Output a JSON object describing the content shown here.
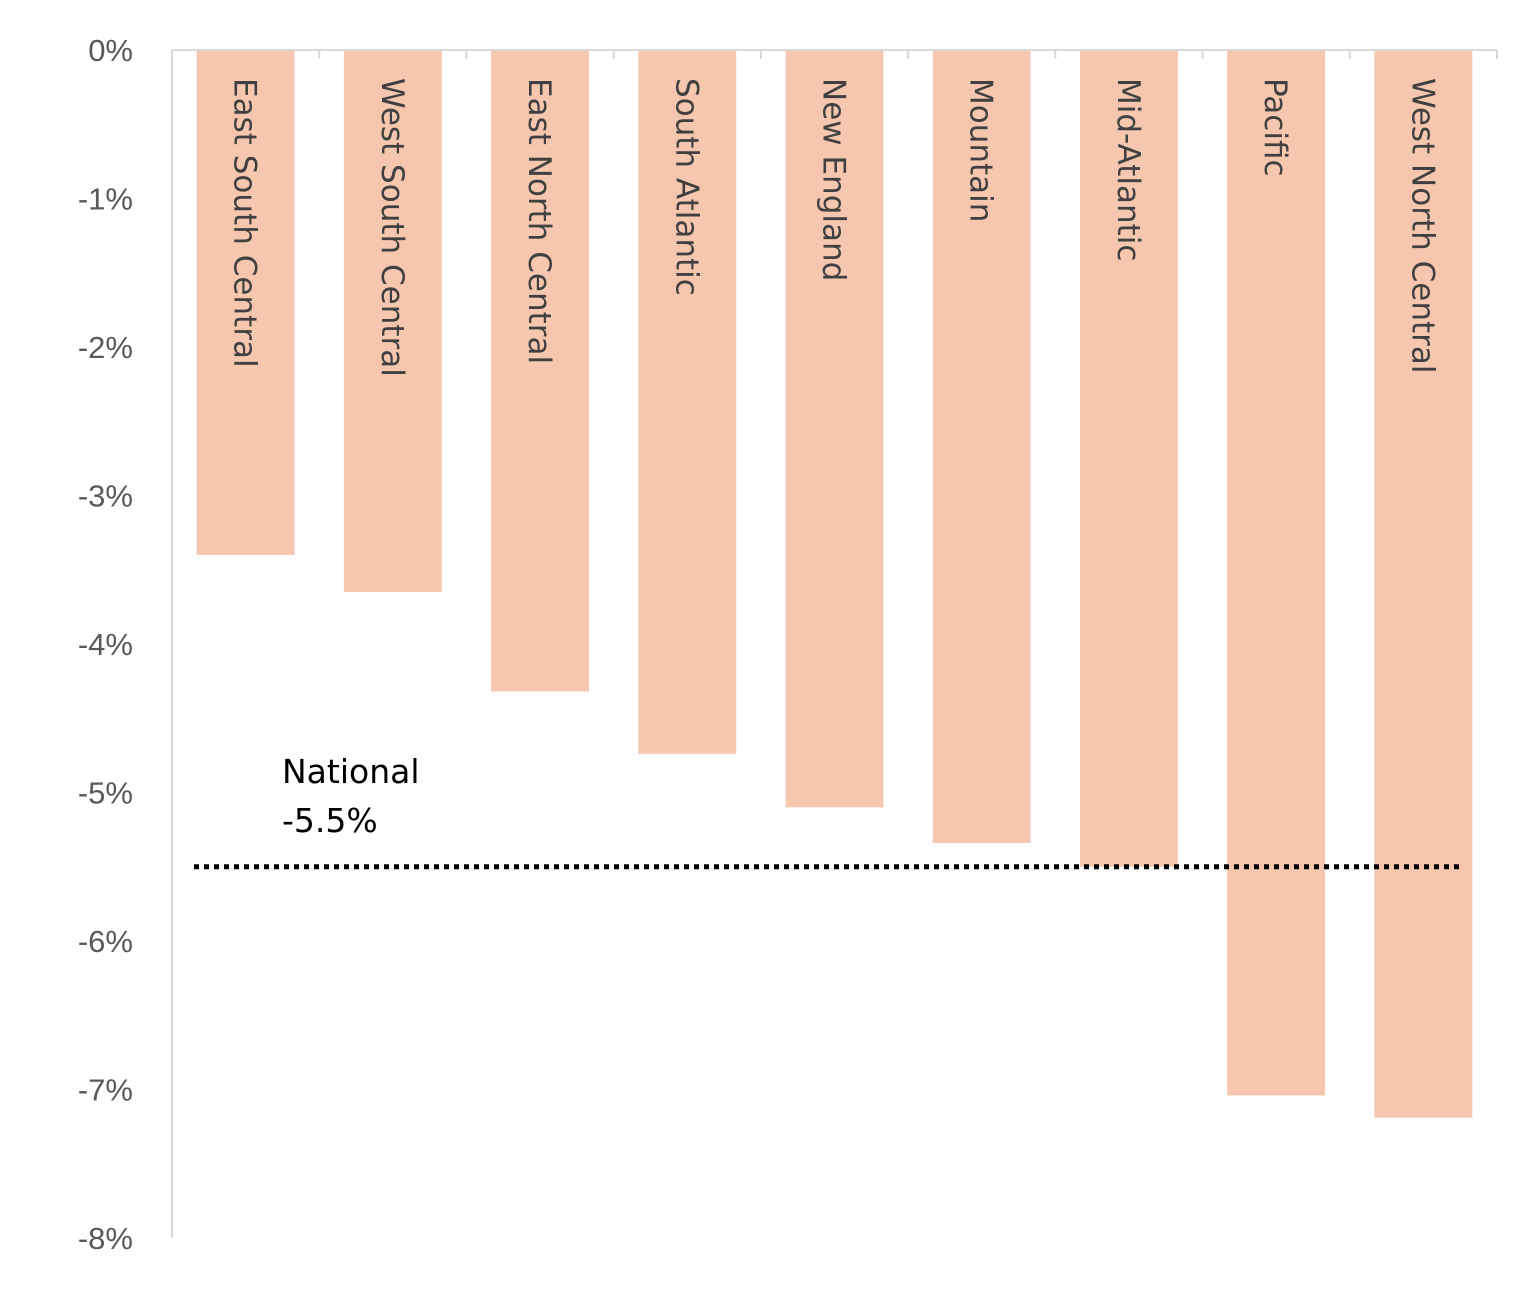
{
  "chart_data": {
    "type": "bar",
    "title": "",
    "xlabel": "",
    "ylabel": "",
    "ylim": [
      -8,
      0
    ],
    "y_ticks": [
      {
        "value": 0,
        "label": "0%"
      },
      {
        "value": -1,
        "label": "-1%"
      },
      {
        "value": -2,
        "label": "-2%"
      },
      {
        "value": -3,
        "label": "-3%"
      },
      {
        "value": -4,
        "label": "-4%"
      },
      {
        "value": -5,
        "label": "-5%"
      },
      {
        "value": -6,
        "label": "-6%"
      },
      {
        "value": -7,
        "label": "-7%"
      },
      {
        "value": -8,
        "label": "-8%"
      }
    ],
    "categories": [
      "East South Central",
      "West South Central",
      "East North Central",
      "South Atlantic",
      "New England",
      "Mountain",
      "Mid-Atlantic",
      "Pacific",
      "West North Central"
    ],
    "values": [
      -3.4,
      -3.65,
      -4.32,
      -4.74,
      -5.1,
      -5.34,
      -5.5,
      -7.04,
      -7.19
    ],
    "bar_color": "#F6C7AE",
    "category_labels_inside_bars": true,
    "grid": false,
    "reference_line": {
      "value": -5.5,
      "label_line1": "National",
      "label_line2": "-5.5%",
      "style": "dotted",
      "color": "#000000"
    }
  }
}
